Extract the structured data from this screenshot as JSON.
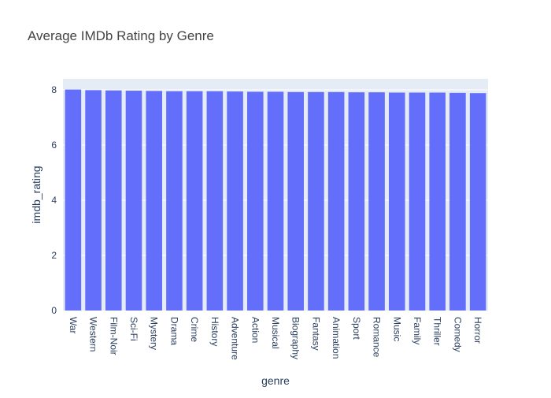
{
  "chart_data": {
    "type": "bar",
    "title": "Average IMDb Rating by Genre",
    "xlabel": "genre",
    "ylabel": "imdb_rating",
    "ylim": [
      0,
      8.4
    ],
    "yticks": [
      0,
      2,
      4,
      6,
      8
    ],
    "grid": true,
    "categories": [
      "War",
      "Western",
      "Film-Noir",
      "Sci-Fi",
      "Mystery",
      "Drama",
      "Crime",
      "History",
      "Adventure",
      "Action",
      "Musical",
      "Biography",
      "Fantasy",
      "Animation",
      "Sport",
      "Romance",
      "Music",
      "Family",
      "Thriller",
      "Comedy",
      "Horror"
    ],
    "values": [
      8.01,
      7.99,
      7.98,
      7.97,
      7.96,
      7.95,
      7.95,
      7.95,
      7.94,
      7.93,
      7.93,
      7.92,
      7.92,
      7.92,
      7.91,
      7.91,
      7.9,
      7.9,
      7.9,
      7.89,
      7.88
    ],
    "colors": {
      "bar": "#636efa",
      "plot_bg": "#e5ecf6",
      "grid": "#ffffff",
      "text": "#2a3f5f",
      "title": "#444444"
    }
  }
}
